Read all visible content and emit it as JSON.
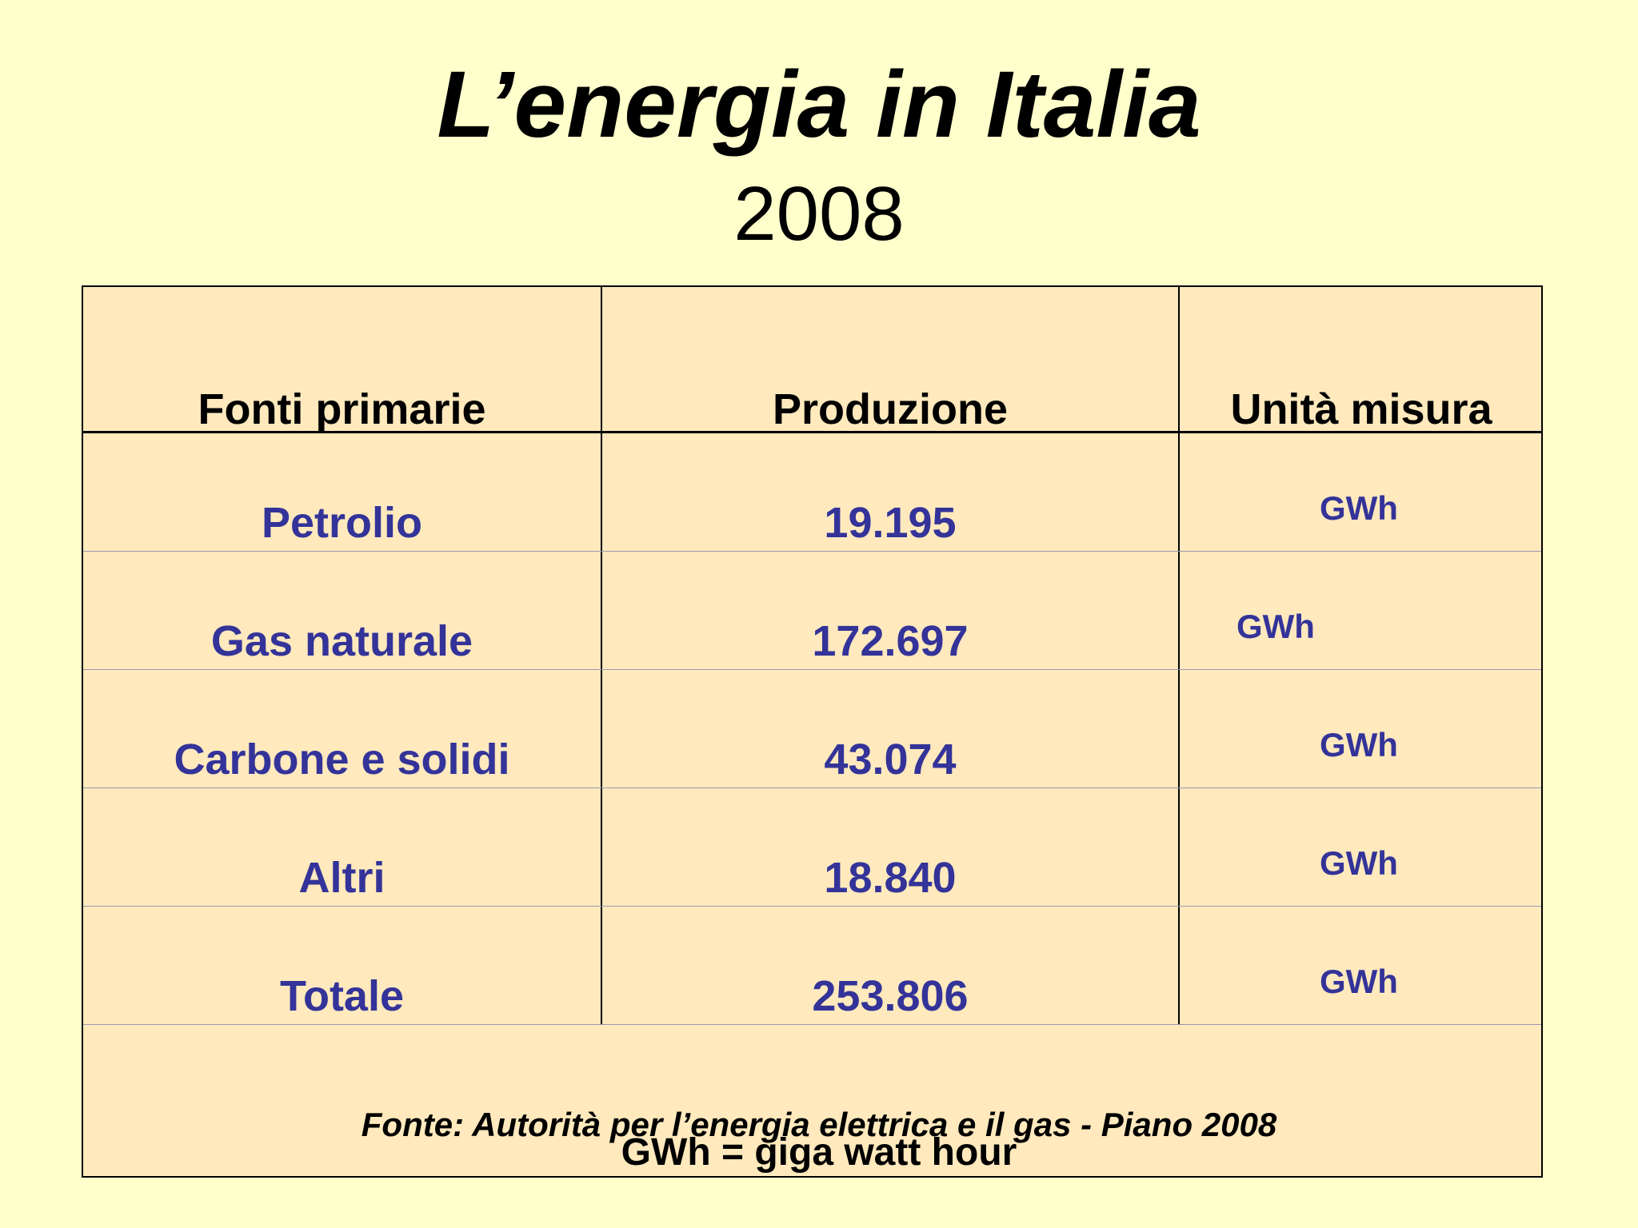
{
  "header": {
    "title": "L’energia in Italia",
    "subtitle": "2008"
  },
  "table": {
    "columns": [
      "Fonti primarie",
      "Produzione",
      "Unità misura"
    ],
    "rows": [
      {
        "fonte": "Petrolio",
        "produzione": "19.195",
        "unita": "GWh"
      },
      {
        "fonte": "Gas naturale",
        "produzione": "172.697",
        "unita": "GWh"
      },
      {
        "fonte": "Carbone e solidi",
        "produzione": "43.074",
        "unita": "GWh"
      },
      {
        "fonte": "Altri",
        "produzione": "18.840",
        "unita": "GWh"
      },
      {
        "fonte": "Totale",
        "produzione": "253.806",
        "unita": "GWh"
      }
    ]
  },
  "footer": {
    "source": "Fonte: Autorità per l’energia elettrica e il gas -  Piano  2008",
    "note": "GWh = giga watt hour"
  }
}
